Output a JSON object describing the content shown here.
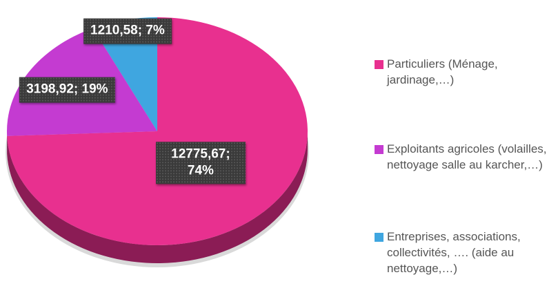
{
  "chart_data": {
    "type": "pie",
    "categories": [
      "Particuliers (Ménage, jardinage,…)",
      "Exploitants agricoles (volailles, nettoyage salle au karcher,…)",
      "Entreprises, associations, collectivités, …. (aide au nettoyage,…)"
    ],
    "values": [
      12775.67,
      3198.92,
      1210.58
    ],
    "value_labels": [
      "12775,67; 74%",
      "3198,92; 19%",
      "1210,58; 7%"
    ],
    "colors": [
      "#e8308f",
      "#c43bd1",
      "#3fa6e0"
    ],
    "legend": "right"
  }
}
